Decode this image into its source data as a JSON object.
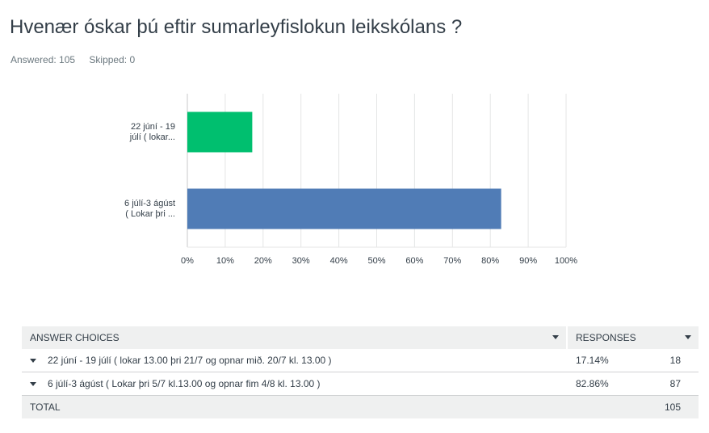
{
  "question": {
    "title": "Hvenær óskar þú eftir sumarleyfislokun leikskólans ?",
    "answered": "Answered: 105",
    "skipped": "Skipped: 0"
  },
  "colors": {
    "bar1": "#00bf6f",
    "bar2": "#507cb6",
    "grid": "#e4e5e5",
    "axis": "#c8cacb"
  },
  "chart_data": {
    "type": "bar",
    "orientation": "horizontal",
    "categories": [
      [
        "22 júní - 19",
        "júlí ( lokar..."
      ],
      [
        "6 júlí-3 ágúst",
        "( Lokar þri ..."
      ]
    ],
    "values": [
      17.14,
      82.86
    ],
    "xticks": [
      "0%",
      "10%",
      "20%",
      "30%",
      "40%",
      "50%",
      "60%",
      "70%",
      "80%",
      "90%",
      "100%"
    ],
    "xlim": [
      0,
      100
    ],
    "grid": true
  },
  "table": {
    "headers": {
      "choices": "ANSWER CHOICES",
      "responses": "RESPONSES"
    },
    "rows": [
      {
        "choice": "22 júní - 19 júlí ( lokar 13.00 þri  21/7 og opnar mið. 20/7 kl. 13.00 )",
        "percent": "17.14%",
        "count": "18"
      },
      {
        "choice": "6 júlí-3 ágúst ( Lokar þri 5/7 kl.13.00 og opnar fim 4/8 kl. 13.00 )",
        "percent": "82.86%",
        "count": "87"
      }
    ],
    "total": {
      "label": "TOTAL",
      "count": "105"
    }
  }
}
